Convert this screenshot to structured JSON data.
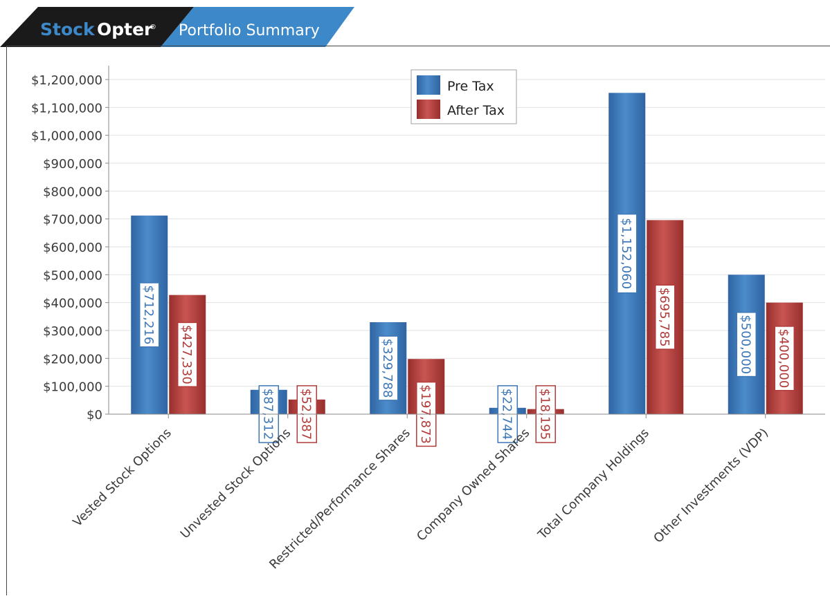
{
  "header": {
    "brand_stock": "Stock",
    "brand_opter": "Opter",
    "brand_reg": "®",
    "title": "Portfolio Summary"
  },
  "colors": {
    "pre_tax": "#3c77b7",
    "after_tax": "#b13b39",
    "header_dark": "#1a1a1a",
    "header_blue": "#3d88c9"
  },
  "chart_data": {
    "type": "bar",
    "title": "",
    "xlabel": "",
    "ylabel": "",
    "ylim": [
      0,
      1200000
    ],
    "grid": true,
    "legend_position": "top-center",
    "yticks": [
      "$0",
      "$100,000",
      "$200,000",
      "$300,000",
      "$400,000",
      "$500,000",
      "$600,000",
      "$700,000",
      "$800,000",
      "$900,000",
      "$1,000,000",
      "$1,100,000",
      "$1,200,000"
    ],
    "categories": [
      "Vested Stock Options",
      "Unvested Stock Options",
      "Restricted/Performance Shares",
      "Company Owned Shares",
      "Total Company Holdings",
      "Other Investments (VDP)"
    ],
    "series": [
      {
        "name": "Pre Tax",
        "values": [
          712216,
          87312,
          329788,
          22744,
          1152060,
          500000
        ],
        "labels": [
          "$712,216",
          "$87,312",
          "$329,788",
          "$22,744",
          "$1,152,060",
          "$500,000"
        ]
      },
      {
        "name": "After Tax",
        "values": [
          427330,
          52387,
          197873,
          18195,
          695785,
          400000
        ],
        "labels": [
          "$427,330",
          "$52,387",
          "$197,873",
          "$18,195",
          "$695,785",
          "$400,000"
        ]
      }
    ]
  }
}
